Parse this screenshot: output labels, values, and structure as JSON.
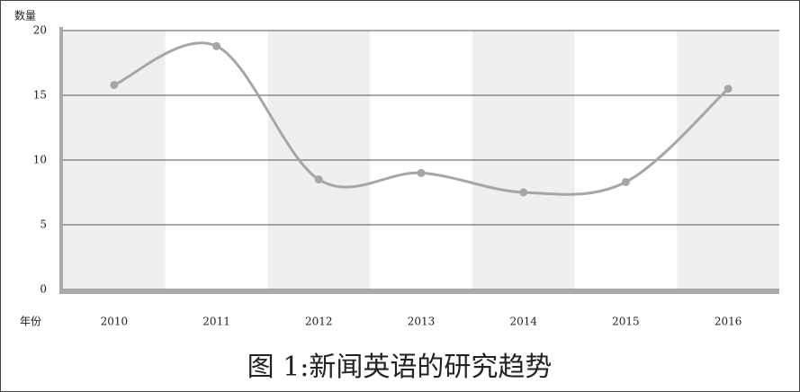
{
  "chart_data": {
    "type": "line",
    "title": "图 1:新闻英语的研究趋势",
    "y_label": "数量",
    "x_label": "年份",
    "categories": [
      "2010",
      "2011",
      "2012",
      "2013",
      "2014",
      "2015",
      "2016"
    ],
    "values": [
      15.8,
      18.8,
      8.5,
      9.0,
      7.5,
      8.3,
      15.5
    ],
    "color": "#a6a6a6",
    "ylim": [
      0,
      20
    ],
    "yticks": [
      0,
      5,
      10,
      15,
      20
    ],
    "grid": true,
    "smooth": true
  }
}
